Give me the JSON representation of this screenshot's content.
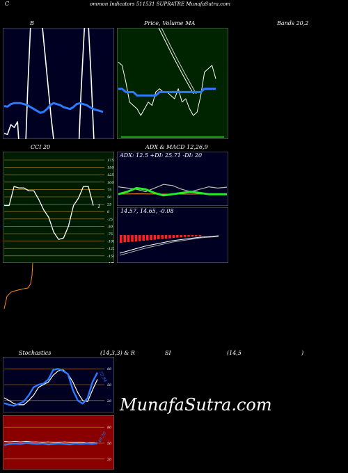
{
  "header": {
    "title_left": "C",
    "title_main": "ommon  Indicators 511531 SUPRATRE MunafaSutra.com"
  },
  "labels": {
    "b": "B",
    "price_ma": "Price,  Volume, MA",
    "price_word": "Price,",
    "volume_word": "Volume",
    "ma_word": "MA",
    "bands": "Bands 20,2",
    "cci": "CCI 20",
    "adx_title": "ADX  & MACD 12,26,9",
    "adx_values": "ADX: 12.5  +DI: 25.71  -DI: 20",
    "macd_values": "14.57,  14.65,  -0.08",
    "stoch_title": "Stochastics",
    "stoch_params": "(14,3,3) & R",
    "si": "SI",
    "rsi_params": "(14,5",
    "rsi_close": ")",
    "stoch_val": "72.94",
    "rsi_val": "48.30"
  },
  "watermark": "MunafaSutra.com",
  "colors": {
    "bands_bg": "#000022",
    "price_bg": "#002400",
    "cci_bg": "#001c00",
    "adx_bg": "#000022",
    "macd_bg": "#000022",
    "stoch_bg": "#000022",
    "rsi_bg": "#8a0000",
    "blue_line": "#2a7bff",
    "green_line": "#22ee22",
    "orange_line": "#ff8a1c",
    "grid_orange": "#c68a2a",
    "panel_border": "#7a7a7a"
  },
  "chart_data": [
    {
      "type": "line",
      "title": "B",
      "subtitle": "Bands 20,2",
      "series": [
        {
          "values": [
            130,
            128,
            145,
            140,
            150,
            60,
            40,
            200,
            330,
            345,
            360,
            340,
            280,
            220,
            160,
            110,
            70,
            50,
            35,
            40,
            30,
            20,
            60,
            200,
            310,
            340,
            230,
            100,
            80,
            70,
            65
          ]
        },
        {
          "values": [
            135,
            132,
            145,
            150,
            150,
            150,
            145,
            140,
            130,
            120,
            110,
            100,
            105,
            120,
            140,
            150,
            145,
            140,
            130,
            125,
            120,
            130,
            145,
            150,
            145,
            140,
            130,
            120,
            115,
            110,
            105
          ]
        }
      ]
    },
    {
      "type": "line",
      "title": "Price,  Volume, MA",
      "series": [
        {
          "values": [
            15.6,
            15.5,
            15.0,
            14.4,
            14.3,
            14.2,
            14.0,
            14.2,
            14.4,
            14.3,
            14.7,
            14.8,
            14.7,
            14.7,
            14.6,
            14.5,
            14.8,
            14.4,
            14.5,
            14.2,
            14.0,
            14.1,
            14.6,
            15.3,
            15.4,
            15.5,
            15.1
          ]
        },
        {
          "values": [
            14.8,
            14.8,
            14.7,
            14.7,
            14.7,
            14.6,
            14.6,
            14.6,
            14.6,
            14.6,
            14.6,
            14.7,
            14.7,
            14.7,
            14.7,
            14.7,
            14.7,
            14.7,
            14.7,
            14.7,
            14.7,
            14.7,
            14.7,
            14.8,
            14.8,
            14.8,
            14.8
          ]
        }
      ]
    },
    {
      "type": "line",
      "title": "CCI 20",
      "yticks": [
        175,
        150,
        125,
        100,
        75,
        50,
        25,
        0,
        -25,
        -50,
        -75,
        -100,
        -125,
        -150,
        -175
      ],
      "ylim": [
        -175,
        175
      ],
      "series": [
        {
          "values": [
            20,
            20,
            85,
            80,
            80,
            70,
            70,
            40,
            5,
            -20,
            -70,
            -95,
            -90,
            -50,
            20,
            45,
            85,
            85,
            20
          ]
        }
      ],
      "last_label": "1"
    },
    {
      "type": "line",
      "title": "ADX  & MACD 12,26,9",
      "series": [
        {
          "name": "ADX",
          "values": [
            12.5,
            12.6,
            12.8,
            12.7,
            12.6,
            12.5,
            12.4,
            12.5,
            12.5,
            12.6,
            12.5,
            12.4,
            12.5
          ]
        },
        {
          "name": "+DI",
          "values": [
            26,
            25,
            24,
            22,
            25,
            28,
            27,
            24,
            22,
            24,
            26,
            25,
            25.71
          ]
        },
        {
          "name": "-DI",
          "values": [
            20,
            22,
            25,
            24,
            21,
            19,
            20,
            21,
            22,
            21,
            20,
            20,
            20
          ]
        }
      ]
    },
    {
      "type": "bar",
      "title": "MACD",
      "values": [
        -0.55,
        -0.52,
        -0.5,
        -0.48,
        -0.46,
        -0.43,
        -0.4,
        -0.38,
        -0.35,
        -0.33,
        -0.3,
        -0.28,
        -0.25,
        -0.23,
        -0.2,
        -0.18,
        -0.16,
        -0.14,
        -0.12,
        -0.1,
        -0.09,
        -0.08
      ]
    },
    {
      "type": "line",
      "title": "Stochastics",
      "yticks": [
        80,
        50,
        20
      ],
      "ylim": [
        0,
        100
      ],
      "series": [
        {
          "values": [
            15,
            12,
            10,
            14,
            18,
            30,
            45,
            50,
            52,
            60,
            78,
            80,
            76,
            70,
            40,
            20,
            14,
            25,
            55,
            72.94
          ]
        },
        {
          "values": [
            25,
            20,
            14,
            12,
            12,
            20,
            30,
            45,
            50,
            55,
            68,
            76,
            78,
            70,
            55,
            35,
            20,
            18,
            40,
            60
          ]
        }
      ]
    },
    {
      "type": "line",
      "title": "RSI",
      "yticks": [
        80,
        50,
        20
      ],
      "ylim": [
        0,
        100
      ],
      "series": [
        {
          "values": [
            45,
            47,
            48,
            47,
            49,
            48,
            47,
            48,
            46,
            47,
            48,
            47,
            46,
            48,
            47,
            48,
            47,
            48.3
          ]
        },
        {
          "values": [
            52,
            51,
            52,
            51,
            52,
            51,
            51,
            50,
            51,
            50,
            50,
            51,
            50,
            50,
            50,
            49,
            49,
            49
          ]
        }
      ]
    }
  ]
}
